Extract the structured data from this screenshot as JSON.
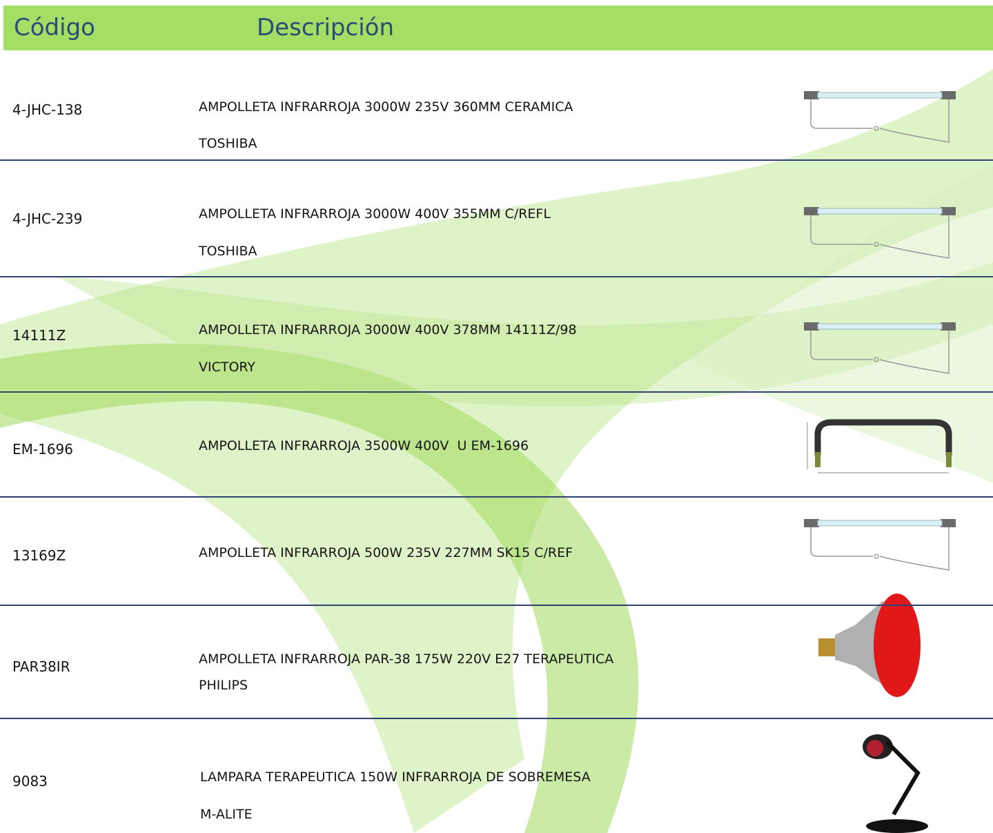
{
  "header": {
    "code": "Código",
    "description": "Descripción"
  },
  "rows": [
    {
      "code": "4-JHC-138",
      "description": [
        "AMPOLLETA INFRARROJA 3000W 235V 360MM CERAMICA",
        "TOSHIBA"
      ]
    },
    {
      "code": "4-JHC-239",
      "description": [
        "AMPOLLETA INFRARROJA 3000W 400V 355MM C/REFL",
        "TOSHIBA"
      ]
    },
    {
      "code": "14111Z",
      "description": [
        "AMPOLLETA INFRARROJA 3000W 400V 378MM 14111Z/98",
        "VICTORY"
      ]
    },
    {
      "code": "EM-1696",
      "description": [
        "AMPOLLETA INFRARROJA 3500W 400V  U EM-1696"
      ]
    },
    {
      "code": "13169Z",
      "description": [
        "AMPOLLETA INFRARROJA 500W 235V 227MM SK15 C/REF"
      ]
    },
    {
      "code": "PAR38IR",
      "description": [
        "AMPOLLETA INFRARROJA PAR-38 175W 220V E27 TERAPEUTICA",
        "PHILIPS"
      ]
    },
    {
      "code": "9083",
      "description": [
        "LAMPARA TERAPEUTICA 150W INFRARROJA DE SOBREMESA",
        "M-ALITE"
      ]
    }
  ]
}
